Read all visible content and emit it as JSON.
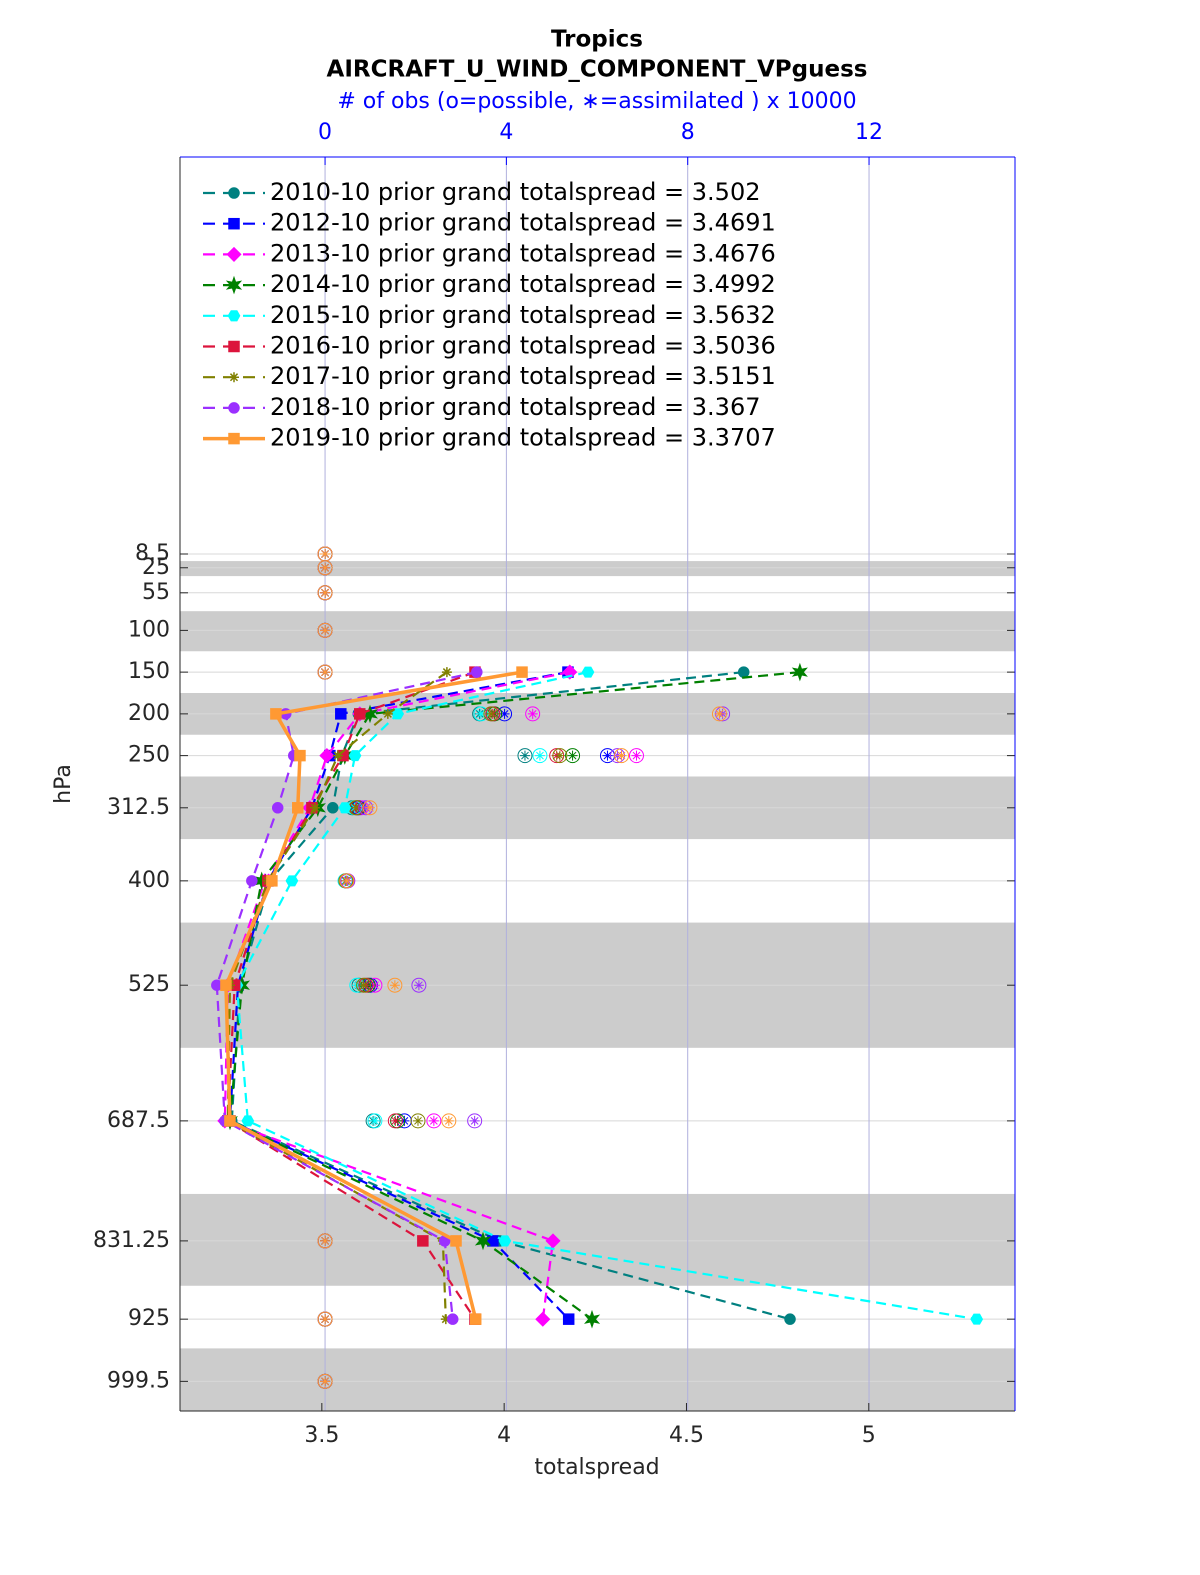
{
  "chart_data": {
    "type": "profile",
    "title": "Tropics",
    "subtitle": "AIRCRAFT_U_WIND_COMPONENT_VPguess",
    "x2label": "# of obs (o=possible, ∗=assimilated ) x 10000",
    "xlabel": "totalspread",
    "ylabel": "hPa",
    "xlim": [
      3.111,
      5.401
    ],
    "xticks": [
      3.5,
      4,
      4.5,
      5
    ],
    "x2lim": [
      -3.2,
      15.22
    ],
    "x2ticks": [
      0,
      4,
      8,
      12
    ],
    "ylim": [
      1035,
      -467
    ],
    "y_reversed": true,
    "yticks": [
      8.5,
      25,
      55,
      100,
      150,
      200,
      250,
      312.5,
      400,
      525,
      687.5,
      831.25,
      925,
      999.5
    ],
    "shaded_layers": [
      [
        17,
        35
      ],
      [
        77,
        125
      ],
      [
        175,
        225
      ],
      [
        275,
        350
      ],
      [
        450,
        600
      ],
      [
        775,
        885
      ],
      [
        960,
        1035
      ]
    ],
    "grid": true,
    "legend_corner": "upper-left",
    "series": [
      {
        "name": "2010-10 prior grand totalspread = 3.502",
        "color": "#008080",
        "marker": "circle",
        "line": "dashed",
        "values": [
          null,
          null,
          null,
          null,
          4.657,
          3.6,
          3.555,
          3.53,
          3.357,
          3.275,
          3.253,
          3.988,
          4.784,
          null
        ],
        "obs_possible": [
          0,
          0,
          0,
          0,
          0,
          3.41,
          4.41,
          0.6,
          0.45,
          0.75,
          1.06,
          0,
          0,
          0
        ],
        "obs_assimilated": [
          0,
          0,
          0,
          0,
          0,
          3.41,
          4.41,
          0.6,
          0.45,
          0.75,
          1.06,
          0,
          0,
          0
        ]
      },
      {
        "name": "2012-10 prior grand totalspread = 3.4691",
        "color": "#0000ff",
        "marker": "square",
        "line": "dashed",
        "values": [
          null,
          null,
          null,
          null,
          4.175,
          3.552,
          3.522,
          3.473,
          3.352,
          3.27,
          3.248,
          3.969,
          4.177,
          null
        ],
        "obs_possible": [
          0,
          0,
          0,
          0,
          0,
          3.96,
          6.23,
          0.75,
          0.48,
          1.0,
          1.75,
          0,
          0,
          0
        ],
        "obs_assimilated": [
          0,
          0,
          0,
          0,
          0,
          3.96,
          6.23,
          0.75,
          0.48,
          1.0,
          1.75,
          0,
          0,
          0
        ]
      },
      {
        "name": "2013-10 prior grand totalspread = 3.4676",
        "color": "#ff00ff",
        "marker": "diamond",
        "line": "dashed",
        "values": [
          null,
          null,
          null,
          null,
          4.18,
          3.604,
          3.514,
          3.467,
          3.344,
          3.242,
          3.234,
          4.134,
          4.106,
          null
        ],
        "obs_possible": [
          0,
          0,
          0,
          0,
          0,
          4.58,
          6.87,
          0.8,
          0.5,
          1.1,
          2.4,
          0,
          0,
          0
        ],
        "obs_assimilated": [
          0,
          0,
          0,
          0,
          0,
          4.58,
          6.87,
          0.8,
          0.5,
          1.1,
          2.4,
          0,
          0,
          0
        ]
      },
      {
        "name": "2014-10 prior grand totalspread = 3.4992",
        "color": "#008000",
        "marker": "star",
        "line": "dashed",
        "values": [
          null,
          null,
          null,
          null,
          4.811,
          3.632,
          3.563,
          3.489,
          3.335,
          3.281,
          3.248,
          3.942,
          4.241,
          null
        ],
        "obs_possible": [
          0,
          0,
          0,
          0,
          0,
          3.74,
          5.46,
          0.72,
          0.47,
          0.95,
          1.6,
          0,
          0,
          0
        ],
        "obs_assimilated": [
          0,
          0,
          0,
          0,
          0,
          3.74,
          5.46,
          0.72,
          0.47,
          0.95,
          1.6,
          0,
          0,
          0
        ]
      },
      {
        "name": "2015-10 prior grand totalspread = 3.5632",
        "color": "#00ffff",
        "marker": "hexagon",
        "line": "dashed",
        "values": [
          null,
          null,
          null,
          null,
          4.23,
          3.708,
          3.591,
          3.563,
          3.418,
          3.267,
          3.297,
          4.002,
          5.296,
          null
        ],
        "obs_possible": [
          0,
          0,
          0,
          0,
          0,
          3.44,
          4.74,
          0.65,
          0.44,
          0.7,
          1.1,
          0,
          0,
          0
        ],
        "obs_assimilated": [
          0,
          0,
          0,
          0,
          0,
          3.44,
          4.74,
          0.65,
          0.44,
          0.7,
          1.1,
          0,
          0,
          0
        ]
      },
      {
        "name": "2016-10 prior grand totalspread = 3.5036",
        "color": "#dc143c",
        "marker": "square",
        "line": "dashed",
        "values": [
          null,
          null,
          null,
          null,
          3.92,
          3.604,
          3.558,
          3.473,
          3.352,
          3.261,
          3.242,
          3.777,
          3.92,
          null
        ],
        "obs_possible": [
          0,
          0,
          0,
          0,
          0,
          3.7,
          5.11,
          0.7,
          0.46,
          0.9,
          1.55,
          0,
          0,
          0
        ],
        "obs_assimilated": [
          0,
          0,
          0,
          0,
          0,
          3.7,
          5.11,
          0.7,
          0.46,
          0.9,
          1.55,
          0,
          0,
          0
        ]
      },
      {
        "name": "2017-10 prior grand totalspread = 3.5151",
        "color": "#808000",
        "marker": "asterisk",
        "line": "dashed",
        "values": [
          null,
          null,
          null,
          null,
          3.843,
          3.681,
          3.544,
          3.481,
          3.352,
          3.248,
          3.242,
          3.832,
          3.84,
          null
        ],
        "obs_possible": [
          0,
          0,
          0,
          0,
          0,
          3.66,
          5.18,
          0.68,
          0.46,
          0.85,
          2.05,
          0,
          0,
          0
        ],
        "obs_assimilated": [
          0,
          0,
          0,
          0,
          0,
          3.66,
          5.18,
          0.68,
          0.46,
          0.85,
          2.05,
          0,
          0,
          0
        ]
      },
      {
        "name": "2018-10 prior grand totalspread = 3.367",
        "color": "#9b30ff",
        "marker": "circle",
        "line": "dashed",
        "values": [
          null,
          null,
          null,
          null,
          3.925,
          3.401,
          3.423,
          3.379,
          3.308,
          3.212,
          3.234,
          3.837,
          3.859,
          null
        ],
        "obs_possible": [
          0,
          0,
          0,
          0,
          0,
          8.77,
          6.45,
          0.9,
          0.5,
          2.07,
          3.3,
          0,
          0,
          0
        ],
        "obs_assimilated": [
          0,
          0,
          0,
          0,
          0,
          8.77,
          6.45,
          0.9,
          0.5,
          2.07,
          3.3,
          0,
          0,
          0
        ]
      },
      {
        "name": "2019-10 prior grand totalspread = 3.3707",
        "color": "#ff9933",
        "marker": "square",
        "line": "solid",
        "values": [
          null,
          null,
          null,
          null,
          4.049,
          3.374,
          3.44,
          3.434,
          3.363,
          3.237,
          3.248,
          3.868,
          3.922,
          null
        ],
        "obs_possible": [
          0,
          0,
          0,
          0,
          0,
          8.7,
          6.54,
          0.99,
          0.48,
          1.54,
          2.73,
          0,
          0,
          0
        ],
        "obs_assimilated": [
          0,
          0,
          0,
          0,
          0,
          8.7,
          6.54,
          0.99,
          0.48,
          1.54,
          2.73,
          0,
          0,
          0
        ]
      }
    ]
  }
}
